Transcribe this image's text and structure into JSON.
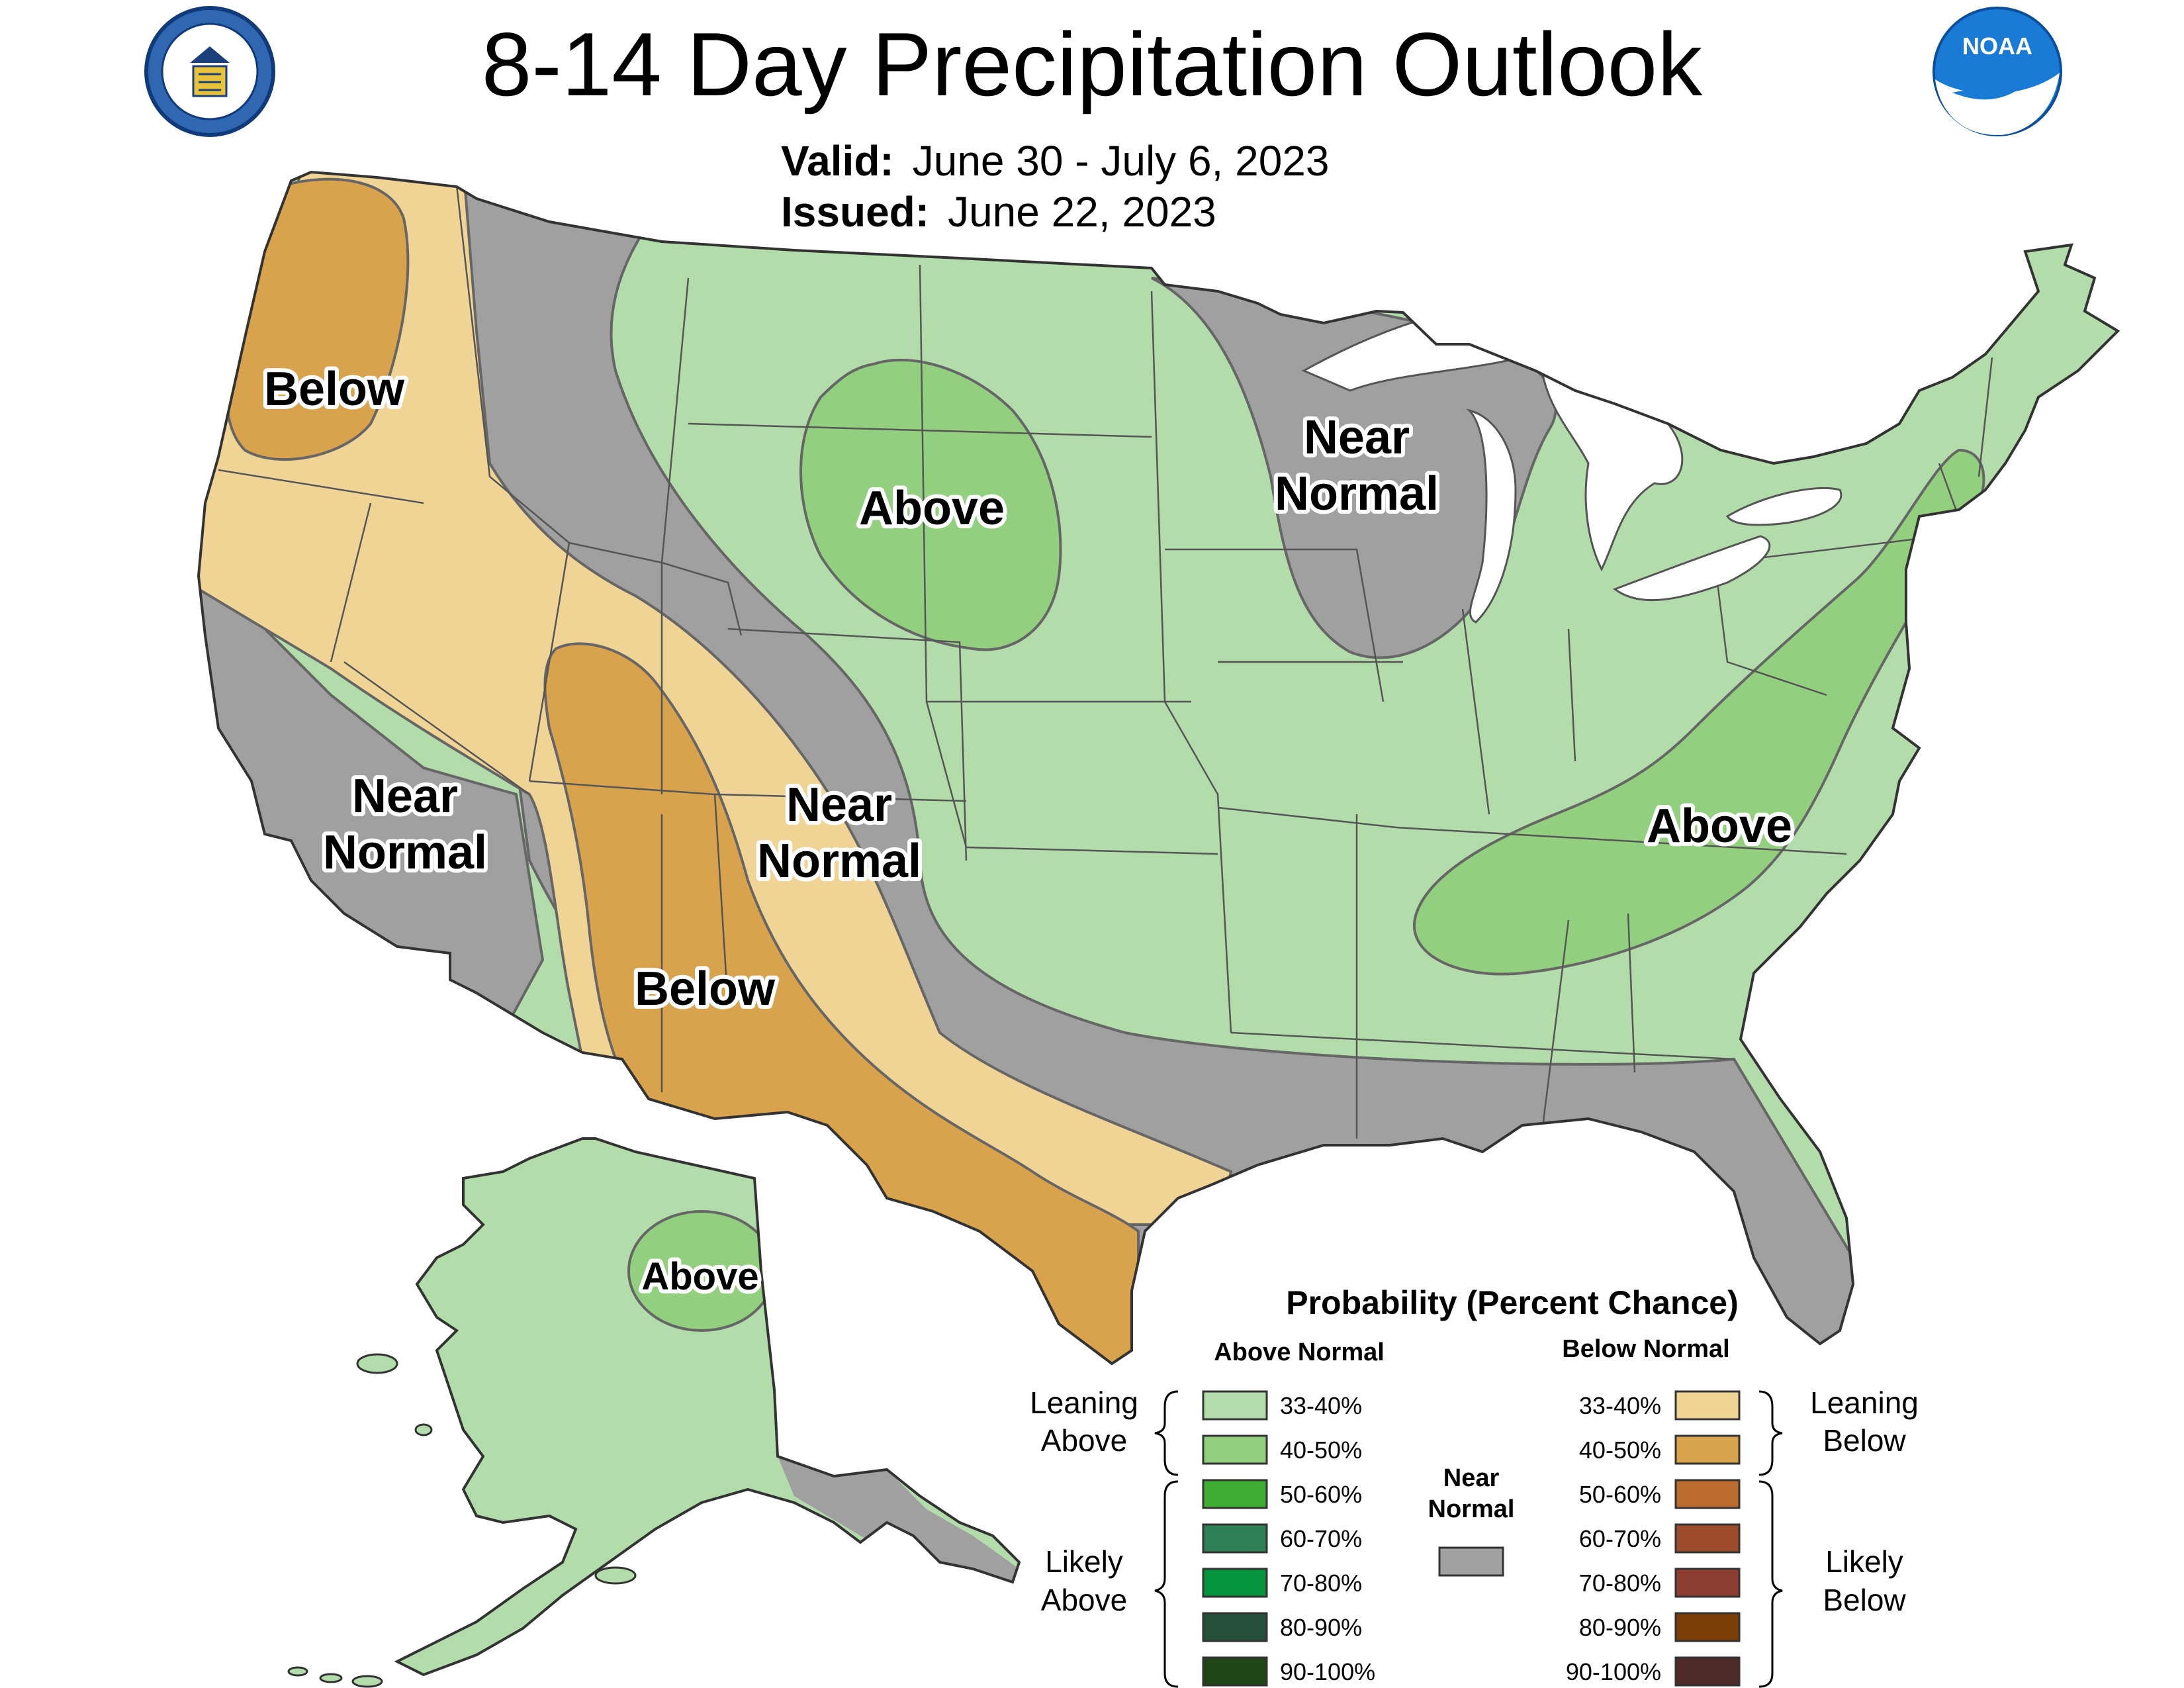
{
  "header": {
    "title": "8-14 Day Precipitation Outlook",
    "valid_label": "Valid:",
    "valid_value": "June 30 - July 6, 2023",
    "issued_label": "Issued:",
    "issued_value": "June 22, 2023"
  },
  "logos": {
    "left": "department-of-commerce-seal",
    "right": "noaa-logo",
    "right_text": "NOAA"
  },
  "regions": [
    {
      "id": "pnw-below",
      "lines": [
        "Below"
      ],
      "category": "leaning_below_40_50"
    },
    {
      "id": "ca-near-normal",
      "lines": [
        "Near",
        "Normal"
      ],
      "category": "near_normal"
    },
    {
      "id": "sw-below",
      "lines": [
        "Below"
      ],
      "category": "leaning_below_40_50"
    },
    {
      "id": "rockies-near-normal",
      "lines": [
        "Near",
        "Normal"
      ],
      "category": "near_normal"
    },
    {
      "id": "plains-above",
      "lines": [
        "Above"
      ],
      "category": "leaning_above_40_50"
    },
    {
      "id": "glakes-near-normal",
      "lines": [
        "Near",
        "Normal"
      ],
      "category": "near_normal"
    },
    {
      "id": "southeast-above",
      "lines": [
        "Above"
      ],
      "category": "leaning_above_40_50"
    },
    {
      "id": "alaska-above",
      "lines": [
        "Above"
      ],
      "category": "leaning_above_40_50"
    }
  ],
  "legend": {
    "title": "Probability (Percent Chance)",
    "above_header": "Above Normal",
    "below_header": "Below Normal",
    "near_normal_label_1": "Near",
    "near_normal_label_2": "Normal",
    "near_normal_color": "#a0a0a0",
    "leaning_above": [
      "Leaning",
      "Above"
    ],
    "likely_above": [
      "Likely",
      "Above"
    ],
    "leaning_below": [
      "Leaning",
      "Below"
    ],
    "likely_below": [
      "Likely",
      "Below"
    ],
    "above": [
      {
        "label": "33-40%",
        "color": "#b3dcab"
      },
      {
        "label": "40-50%",
        "color": "#92cf7f"
      },
      {
        "label": "50-60%",
        "color": "#3fae35"
      },
      {
        "label": "60-70%",
        "color": "#2f7f57"
      },
      {
        "label": "70-80%",
        "color": "#05943b"
      },
      {
        "label": "80-90%",
        "color": "#24503a"
      },
      {
        "label": "90-100%",
        "color": "#214716"
      }
    ],
    "below": [
      {
        "label": "33-40%",
        "color": "#f0d496"
      },
      {
        "label": "40-50%",
        "color": "#d8a34c"
      },
      {
        "label": "50-60%",
        "color": "#bb6b2e"
      },
      {
        "label": "60-70%",
        "color": "#9c4c2a"
      },
      {
        "label": "70-80%",
        "color": "#8e3d31"
      },
      {
        "label": "80-90%",
        "color": "#7b3e06"
      },
      {
        "label": "90-100%",
        "color": "#4e2b29"
      }
    ]
  }
}
